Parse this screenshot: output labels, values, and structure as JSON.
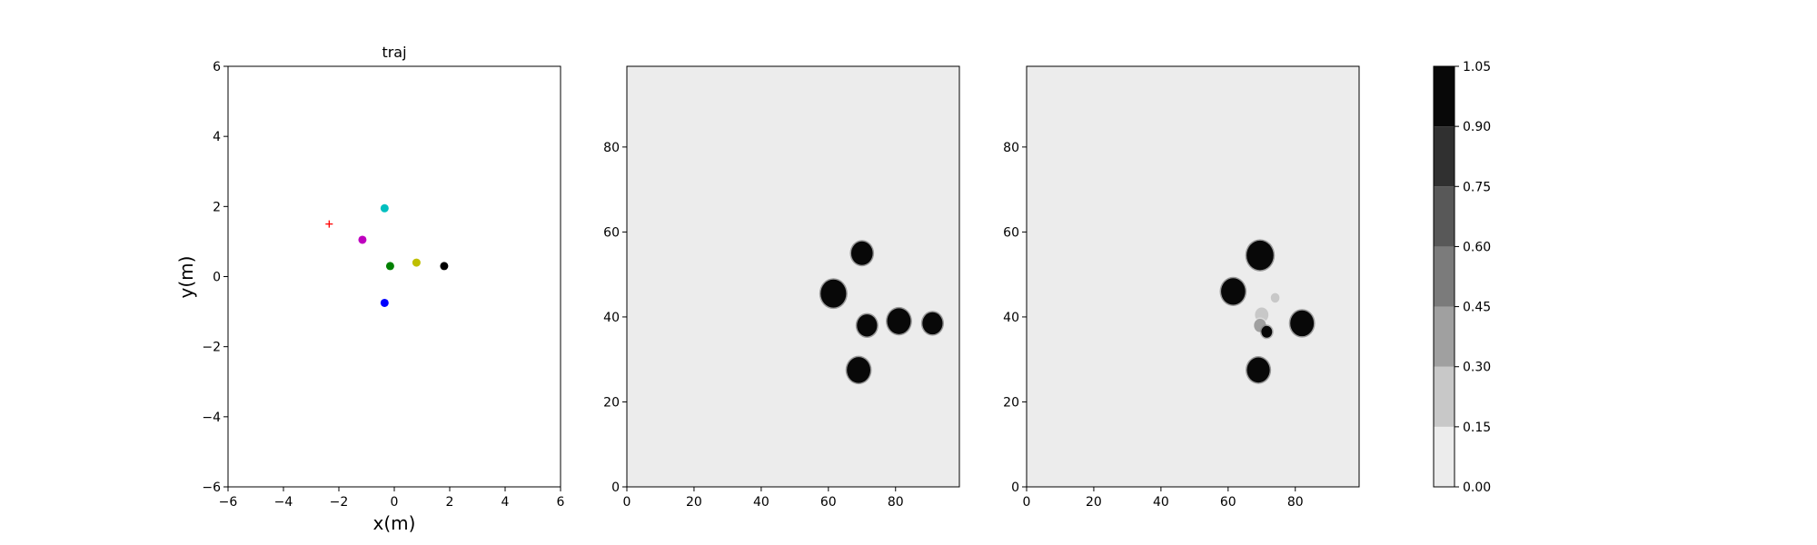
{
  "chart_data": [
    {
      "type": "scatter",
      "title": "traj",
      "xlabel": "x(m)",
      "ylabel": "y(m)",
      "xlim": [
        -6,
        6
      ],
      "ylim": [
        -6,
        6
      ],
      "xticks": [
        -6,
        -4,
        -2,
        0,
        2,
        4,
        6
      ],
      "yticks": [
        -6,
        -4,
        -2,
        0,
        2,
        4,
        6
      ],
      "grid": false,
      "points": [
        {
          "x": -2.35,
          "y": 1.5,
          "color": "#ff0000",
          "marker": "plus"
        },
        {
          "x": -0.35,
          "y": 1.95,
          "color": "#00bfbf",
          "marker": "circle"
        },
        {
          "x": -1.15,
          "y": 1.05,
          "color": "#bf00bf",
          "marker": "circle"
        },
        {
          "x": -0.15,
          "y": 0.3,
          "color": "#008000",
          "marker": "circle"
        },
        {
          "x": 0.8,
          "y": 0.4,
          "color": "#bfbf00",
          "marker": "circle"
        },
        {
          "x": 1.8,
          "y": 0.3,
          "color": "#000000",
          "marker": "circle"
        },
        {
          "x": -0.35,
          "y": -0.75,
          "color": "#0000ff",
          "marker": "circle"
        }
      ]
    },
    {
      "type": "heatmap",
      "xlim": [
        0,
        99
      ],
      "ylim": [
        0,
        99
      ],
      "xticks": [
        0,
        20,
        40,
        60,
        80
      ],
      "yticks": [
        0,
        20,
        40,
        60,
        80
      ],
      "background_level": 0.075,
      "blobs": [
        {
          "x": 70,
          "y": 55,
          "r": 3.2,
          "level": 1.0
        },
        {
          "x": 61.5,
          "y": 45.5,
          "r": 3.8,
          "level": 1.0
        },
        {
          "x": 71.5,
          "y": 38,
          "r": 3.0,
          "level": 1.0
        },
        {
          "x": 81,
          "y": 39,
          "r": 3.5,
          "level": 1.0
        },
        {
          "x": 91,
          "y": 38.5,
          "r": 3.0,
          "level": 1.0
        },
        {
          "x": 69,
          "y": 27.5,
          "r": 3.5,
          "level": 1.0
        }
      ]
    },
    {
      "type": "heatmap",
      "xlim": [
        0,
        99
      ],
      "ylim": [
        0,
        99
      ],
      "xticks": [
        0,
        20,
        40,
        60,
        80
      ],
      "yticks": [
        0,
        20,
        40,
        60,
        80
      ],
      "background_level": 0.075,
      "blobs": [
        {
          "x": 69.5,
          "y": 54.5,
          "r": 4.0,
          "level": 1.0
        },
        {
          "x": 61.5,
          "y": 46,
          "r": 3.6,
          "level": 1.0
        },
        {
          "x": 82,
          "y": 38.5,
          "r": 3.5,
          "level": 1.0
        },
        {
          "x": 69,
          "y": 27.5,
          "r": 3.4,
          "level": 1.0
        },
        {
          "x": 74,
          "y": 44.5,
          "r": 1.3,
          "level": 0.2
        },
        {
          "x": 70,
          "y": 40.5,
          "r": 2.0,
          "level": 0.25
        },
        {
          "x": 69.5,
          "y": 38,
          "r": 1.8,
          "level": 0.3
        },
        {
          "x": 71.5,
          "y": 36.5,
          "r": 1.6,
          "level": 0.9
        }
      ]
    }
  ],
  "colorbar": {
    "levels": [
      0.0,
      0.15,
      0.3,
      0.45,
      0.6,
      0.75,
      0.9,
      1.05
    ],
    "tick_labels": [
      "0.00",
      "0.15",
      "0.30",
      "0.45",
      "0.60",
      "0.75",
      "0.90",
      "1.05"
    ],
    "colors": [
      "#ececec",
      "#c8c8c8",
      "#a0a0a0",
      "#7b7b7b",
      "#585858",
      "#303030",
      "#080808"
    ]
  }
}
